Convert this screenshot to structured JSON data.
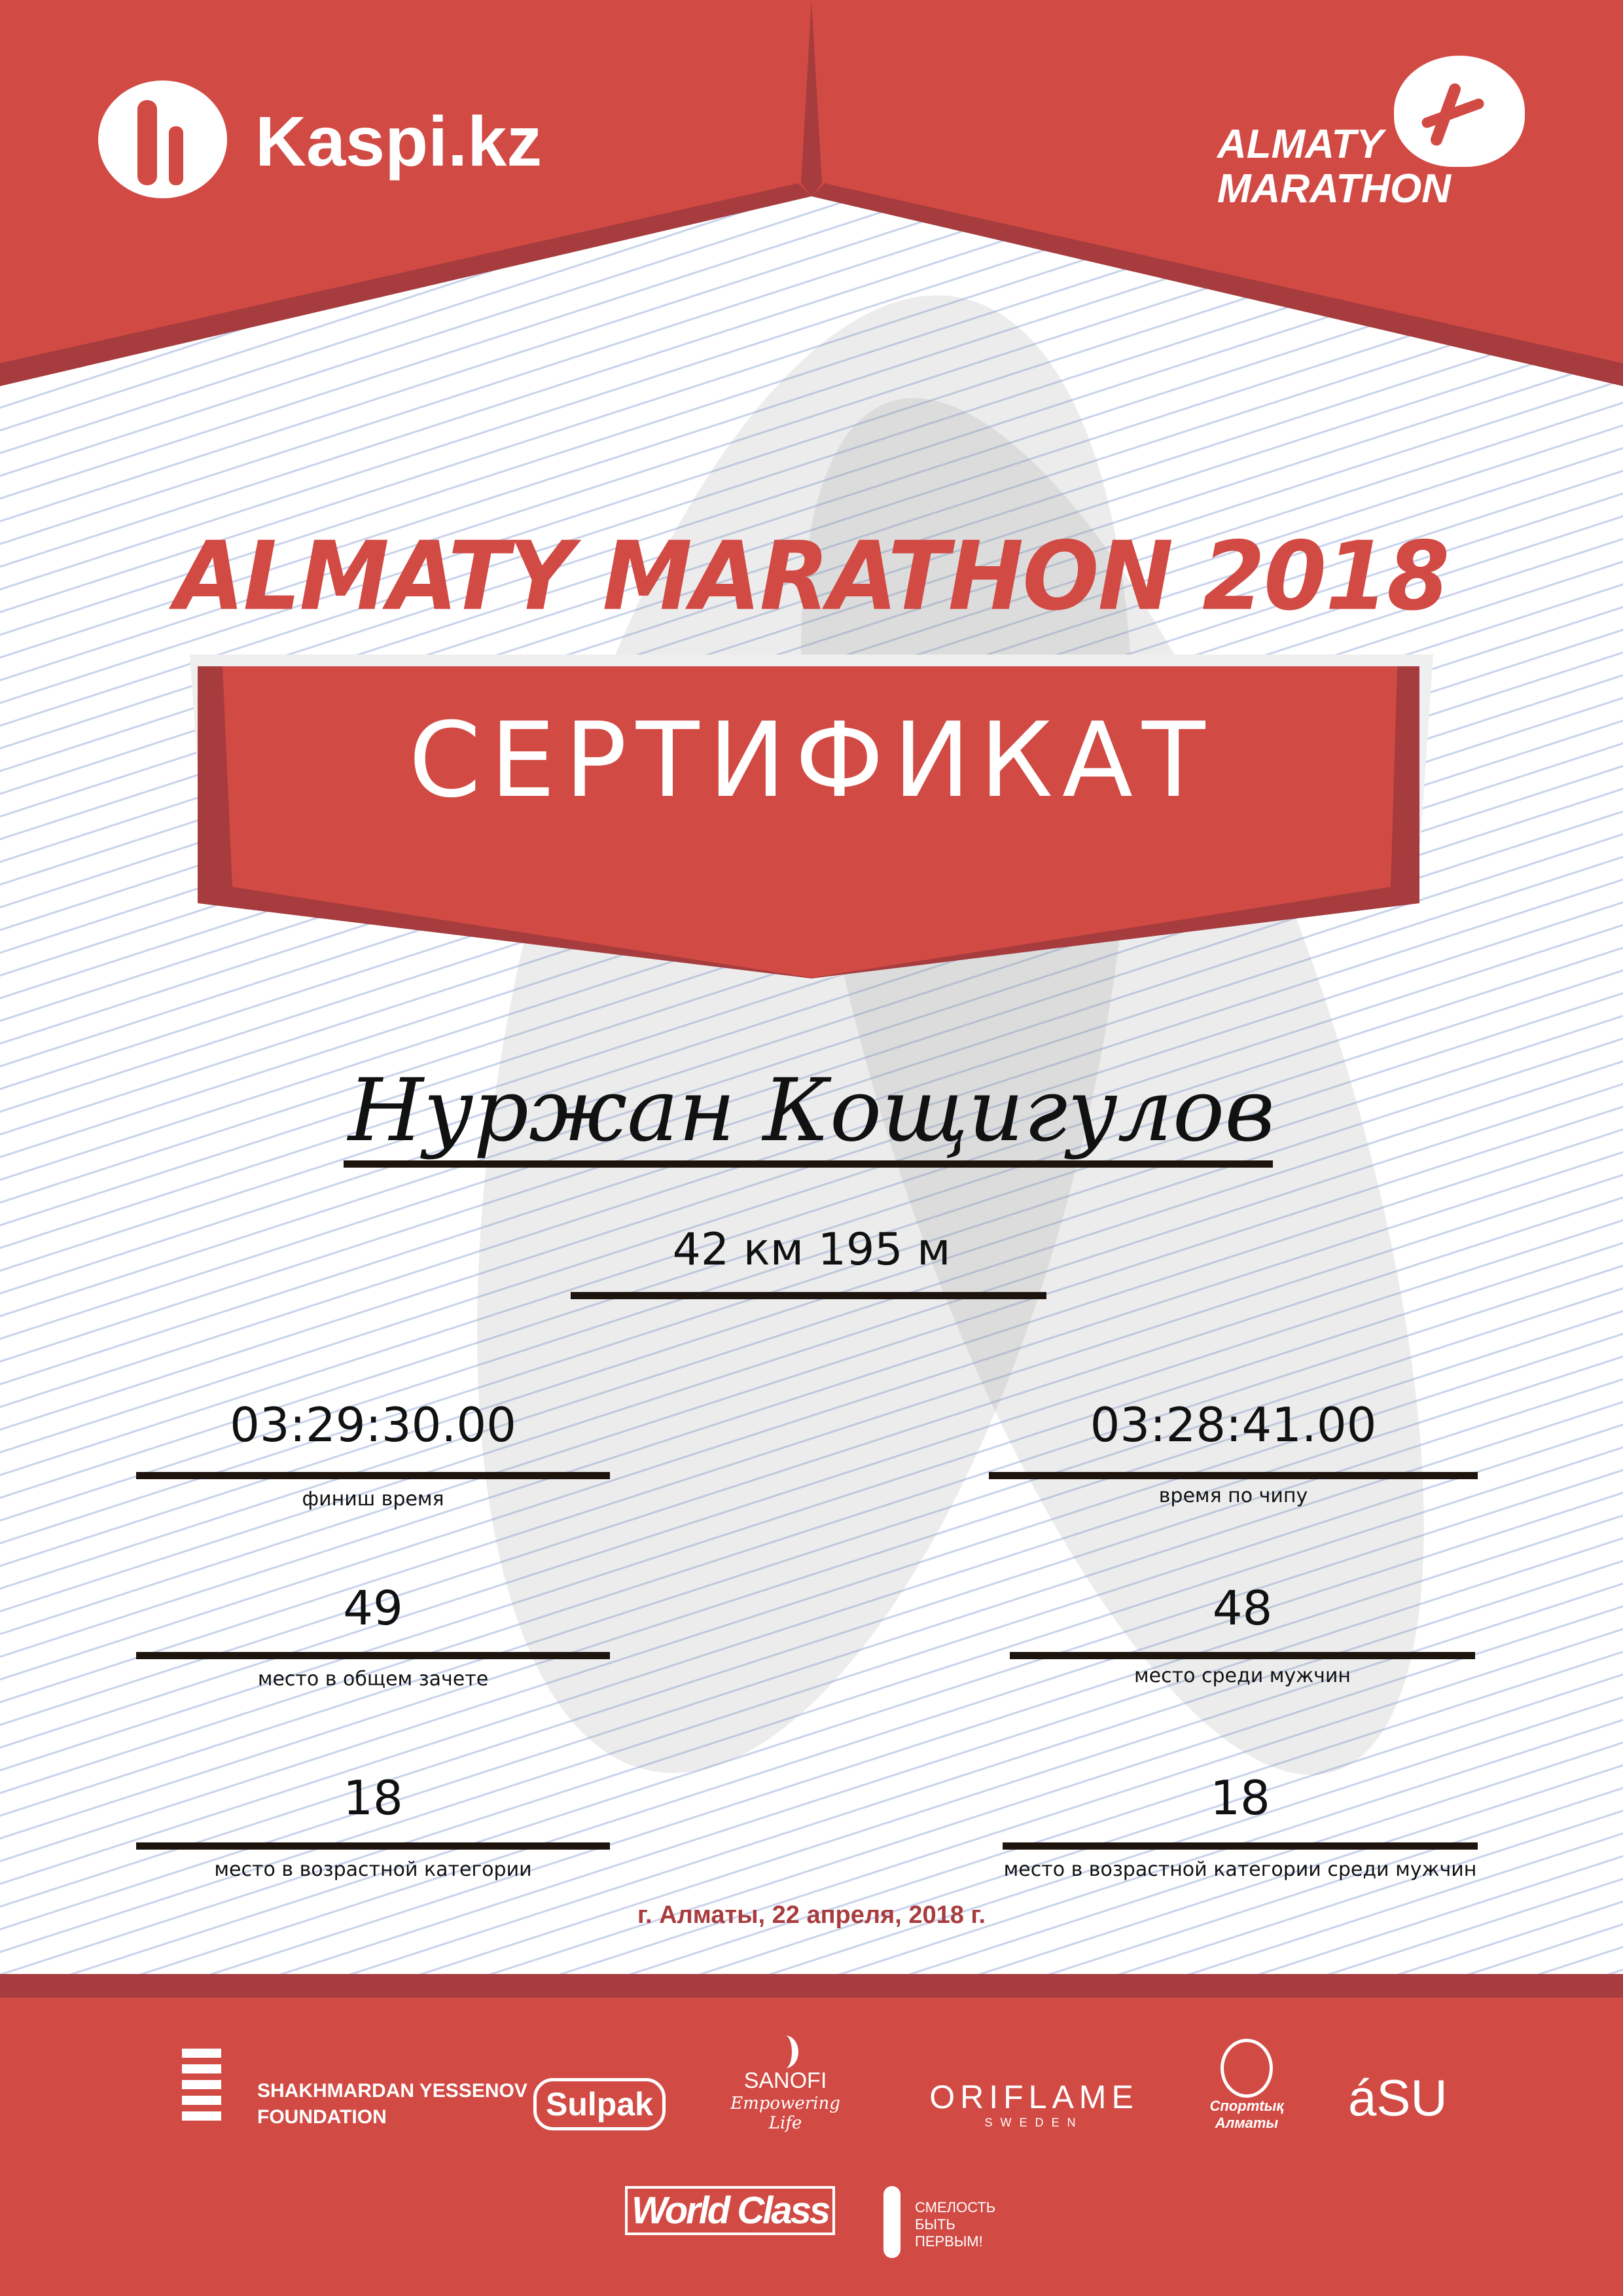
{
  "colors": {
    "brand_red": "#d24a44",
    "dark_red": "#a63c3e",
    "date_color": "#a83c3e",
    "line": "#1e140e"
  },
  "header": {
    "left_logo": "Kaspi.kz",
    "left_logo_icon": "kaspi-family-icon",
    "right_logo_line1": "ALMATY",
    "right_logo_line2": "MARATHON",
    "right_logo_icon": "runner-icon"
  },
  "title": "ALMATY MARATHON 2018",
  "certificate_label": "СЕРТИФИКАТ",
  "participant_name": "Нуржан Кощигулов",
  "distance": "42 км 195 м",
  "results": {
    "finish_time": {
      "value": "03:29:30.00",
      "label": "финиш время"
    },
    "chip_time": {
      "value": "03:28:41.00",
      "label": "время по чипу"
    },
    "overall_place": {
      "value": "49",
      "label": "место в общем зачете"
    },
    "men_place": {
      "value": "48",
      "label": "место среди мужчин"
    },
    "age_place": {
      "value": "18",
      "label": "место в возрастной категории"
    },
    "age_men_place": {
      "value": "18",
      "label": "место в возрастной категории среди мужчин"
    }
  },
  "date_place": "г. Алматы, 22 апреля, 2018 г.",
  "sponsors": [
    {
      "name": "SHAKHMARDAN YESSENOV FOUNDATION",
      "line1": "SHAKHMARDAN YESSENOV",
      "line2": "FOUNDATION"
    },
    {
      "name": "Sulpak"
    },
    {
      "name": "SANOFI",
      "tagline": "Empowering Life"
    },
    {
      "name": "ORIFLAME",
      "tagline": "SWEDEN"
    },
    {
      "name": "Спортивный Алматы",
      "line1": "Спортtық",
      "line2": "Алматы"
    },
    {
      "name": "asu",
      "display": "áSU"
    },
    {
      "name": "World Class"
    },
    {
      "name": "Смелость быть первым!",
      "line1": "СМЕЛОСТЬ",
      "line2": "БЫТЬ",
      "line3": "ПЕРВЫМ!"
    }
  ]
}
